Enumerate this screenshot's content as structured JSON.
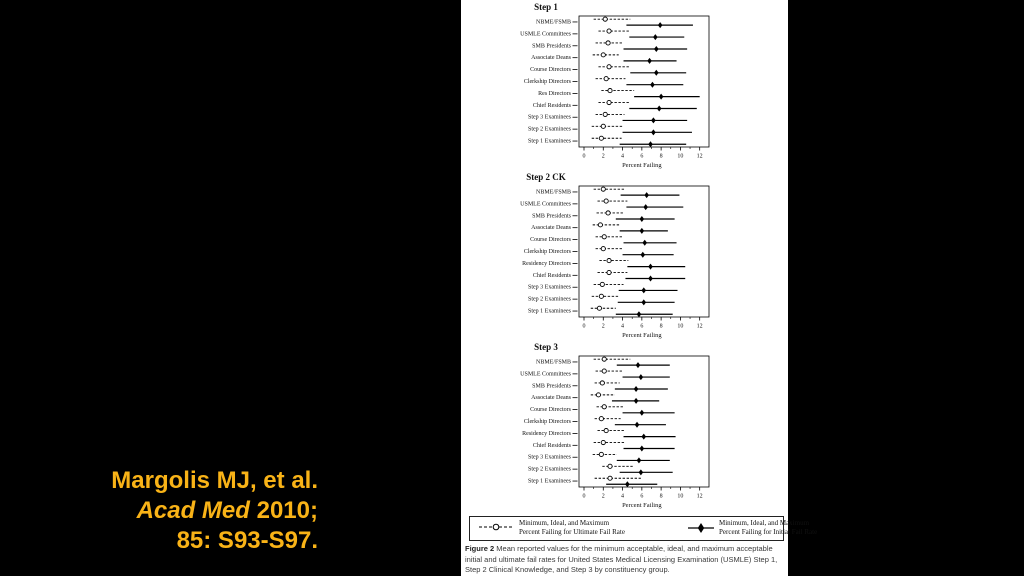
{
  "slide": {
    "background_color": "#000000",
    "citation": {
      "line1": "Margolis MJ, et al.",
      "line2_italic": "Acad Med",
      "line2_rest": " 2010;",
      "line3": "85: S93-S97.",
      "color": "#F9B317"
    }
  },
  "figure": {
    "panel_color": "#ffffff",
    "legend": [
      {
        "marker": "open-circle-dashed-line",
        "label_line1": "Minimum, Ideal, and Maximum",
        "label_line2": "Percent Failing for Ultimate Fail Rate"
      },
      {
        "marker": "filled-diamond-solid-line",
        "label_line1": "Minimum, Ideal, and Maximum",
        "label_line2": "Percent Failing for Initial Fail Rate"
      }
    ],
    "caption_label": "Figure 2",
    "caption_text": " Mean reported values for the minimum acceptable, ideal, and maximum acceptable initial and ultimate fail rates for United States Medical Licensing Examination (USMLE) Step 1, Step 2 Clinical Knowledge, and Step 3 by constituency group."
  },
  "chart_data": [
    {
      "type": "scatter",
      "title": "Step 1",
      "xlabel": "Percent Failing",
      "xlim": [
        0,
        12
      ],
      "xticks": [
        0,
        2,
        4,
        6,
        8,
        10,
        12
      ],
      "grid": false,
      "legend_position": "bottom",
      "series_meta": [
        {
          "name": "Minimum, Ideal, and Maximum Percent Failing for Ultimate Fail Rate",
          "marker": "open-circle",
          "line": "dashed"
        },
        {
          "name": "Minimum, Ideal, and Maximum Percent Failing for Initial Fail Rate",
          "marker": "filled-diamond",
          "line": "solid"
        }
      ],
      "rows": [
        {
          "label": "NBME/FSMB",
          "ultimate": [
            1.0,
            2.2,
            4.8
          ],
          "initial": [
            4.4,
            7.9,
            11.3
          ]
        },
        {
          "label": "USMLE Committees",
          "ultimate": [
            1.5,
            2.6,
            4.7
          ],
          "initial": [
            4.7,
            7.4,
            10.4
          ]
        },
        {
          "label": "SMB Presidents",
          "ultimate": [
            1.2,
            2.5,
            4.1
          ],
          "initial": [
            4.1,
            7.5,
            10.7
          ]
        },
        {
          "label": "Associate Deans",
          "ultimate": [
            0.9,
            2.0,
            3.6
          ],
          "initial": [
            4.1,
            6.8,
            9.6
          ]
        },
        {
          "label": "Course Directors",
          "ultimate": [
            1.5,
            2.6,
            4.7
          ],
          "initial": [
            4.8,
            7.5,
            10.6
          ]
        },
        {
          "label": "Clerkship Directors",
          "ultimate": [
            1.2,
            2.3,
            4.3
          ],
          "initial": [
            4.4,
            7.1,
            10.3
          ]
        },
        {
          "label": "Res Directors",
          "ultimate": [
            1.8,
            2.7,
            5.2
          ],
          "initial": [
            5.2,
            8.0,
            12.0
          ]
        },
        {
          "label": "Chief Residents",
          "ultimate": [
            1.5,
            2.6,
            4.8
          ],
          "initial": [
            4.7,
            7.8,
            11.7
          ]
        },
        {
          "label": "Step 3 Examinees",
          "ultimate": [
            1.2,
            2.2,
            4.2
          ],
          "initial": [
            4.0,
            7.2,
            10.7
          ]
        },
        {
          "label": "Step 2 Examinees",
          "ultimate": [
            0.8,
            2.0,
            4.0
          ],
          "initial": [
            4.0,
            7.2,
            11.2
          ]
        },
        {
          "label": "Step 1 Examinees",
          "ultimate": [
            0.8,
            1.8,
            3.9
          ],
          "initial": [
            3.7,
            6.9,
            10.6
          ]
        }
      ]
    },
    {
      "type": "scatter",
      "title": "Step 2 CK",
      "xlabel": "Percent Failing",
      "xlim": [
        0,
        12
      ],
      "xticks": [
        0,
        2,
        4,
        6,
        8,
        10,
        12
      ],
      "grid": false,
      "legend_position": "bottom",
      "series_meta": [
        {
          "name": "Minimum, Ideal, and Maximum Percent Failing for Ultimate Fail Rate",
          "marker": "open-circle",
          "line": "dashed"
        },
        {
          "name": "Minimum, Ideal, and Maximum Percent Failing for Initial Fail Rate",
          "marker": "filled-diamond",
          "line": "solid"
        }
      ],
      "rows": [
        {
          "label": "NBME/FSMB",
          "ultimate": [
            1.0,
            2.0,
            4.3
          ],
          "initial": [
            3.8,
            6.5,
            9.9
          ]
        },
        {
          "label": "USMLE Committees",
          "ultimate": [
            1.4,
            2.3,
            4.5
          ],
          "initial": [
            4.4,
            6.4,
            10.3
          ]
        },
        {
          "label": "SMB Presidents",
          "ultimate": [
            1.3,
            2.5,
            4.1
          ],
          "initial": [
            3.3,
            6.0,
            9.4
          ]
        },
        {
          "label": "Associate Deans",
          "ultimate": [
            0.9,
            1.7,
            3.7
          ],
          "initial": [
            3.7,
            6.0,
            8.7
          ]
        },
        {
          "label": "Course Directors",
          "ultimate": [
            1.2,
            2.1,
            4.1
          ],
          "initial": [
            4.1,
            6.3,
            9.6
          ]
        },
        {
          "label": "Clerkship Directors",
          "ultimate": [
            1.2,
            2.0,
            4.1
          ],
          "initial": [
            4.0,
            6.1,
            9.3
          ]
        },
        {
          "label": "Residency Directors",
          "ultimate": [
            1.6,
            2.6,
            4.6
          ],
          "initial": [
            4.5,
            6.9,
            10.5
          ]
        },
        {
          "label": "Chief Residents",
          "ultimate": [
            1.4,
            2.6,
            4.5
          ],
          "initial": [
            4.3,
            6.9,
            10.5
          ]
        },
        {
          "label": "Step 3 Examinees",
          "ultimate": [
            1.0,
            1.9,
            4.1
          ],
          "initial": [
            3.6,
            6.2,
            9.7
          ]
        },
        {
          "label": "Step 2 Examinees",
          "ultimate": [
            0.8,
            1.8,
            3.7
          ],
          "initial": [
            3.5,
            6.2,
            9.4
          ]
        },
        {
          "label": "Step 1 Examinees",
          "ultimate": [
            0.7,
            1.6,
            3.3
          ],
          "initial": [
            3.3,
            5.7,
            9.2
          ]
        }
      ]
    },
    {
      "type": "scatter",
      "title": "Step 3",
      "xlabel": "Percent Failing",
      "xlim": [
        0,
        12
      ],
      "xticks": [
        0,
        2,
        4,
        6,
        8,
        10,
        12
      ],
      "grid": false,
      "legend_position": "bottom",
      "series_meta": [
        {
          "name": "Minimum, Ideal, and Maximum Percent Failing for Ultimate Fail Rate",
          "marker": "open-circle",
          "line": "dashed"
        },
        {
          "name": "Minimum, Ideal, and Maximum Percent Failing for Initial Fail Rate",
          "marker": "filled-diamond",
          "line": "solid"
        }
      ],
      "rows": [
        {
          "label": "NBME/FSMB",
          "ultimate": [
            1.0,
            2.1,
            4.8
          ],
          "initial": [
            3.4,
            5.6,
            8.9
          ]
        },
        {
          "label": "USMLE Committees",
          "ultimate": [
            1.2,
            2.1,
            4.0
          ],
          "initial": [
            4.0,
            5.9,
            8.9
          ]
        },
        {
          "label": "SMB Presidents",
          "ultimate": [
            1.1,
            1.9,
            3.7
          ],
          "initial": [
            3.2,
            5.4,
            8.7
          ]
        },
        {
          "label": "Associate Deans",
          "ultimate": [
            0.7,
            1.5,
            3.2
          ],
          "initial": [
            2.9,
            5.4,
            7.8
          ]
        },
        {
          "label": "Course Directors",
          "ultimate": [
            1.3,
            2.1,
            4.1
          ],
          "initial": [
            4.0,
            6.0,
            9.4
          ]
        },
        {
          "label": "Clerkship Directors",
          "ultimate": [
            1.1,
            1.8,
            3.8
          ],
          "initial": [
            3.2,
            5.5,
            8.5
          ]
        },
        {
          "label": "Residency Directors",
          "ultimate": [
            1.4,
            2.3,
            4.3
          ],
          "initial": [
            4.1,
            6.2,
            9.5
          ]
        },
        {
          "label": "Chief Residents",
          "ultimate": [
            1.0,
            2.0,
            4.2
          ],
          "initial": [
            4.1,
            6.0,
            9.4
          ]
        },
        {
          "label": "Step 3 Examinees",
          "ultimate": [
            0.9,
            1.8,
            3.4
          ],
          "initial": [
            3.4,
            5.7,
            8.9
          ]
        },
        {
          "label": "Step 2 Examinees",
          "ultimate": [
            1.9,
            2.7,
            5.1
          ],
          "initial": [
            3.7,
            5.9,
            9.2
          ]
        },
        {
          "label": "Step 1 Examinees",
          "ultimate": [
            1.1,
            2.7,
            5.9
          ],
          "initial": [
            2.3,
            4.5,
            7.6
          ]
        }
      ]
    }
  ]
}
